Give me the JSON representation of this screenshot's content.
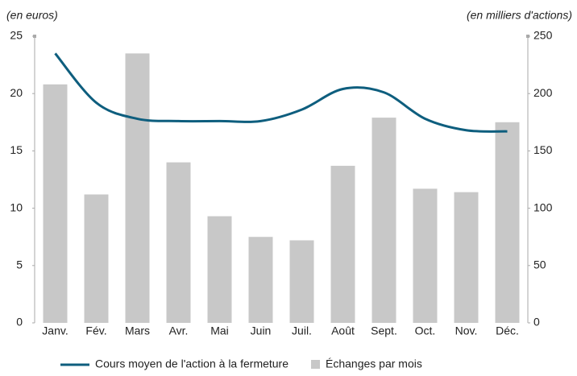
{
  "chart_data": {
    "type": "combo",
    "y_label": "(en euros)",
    "y2_label": "(en milliers d'actions)",
    "categories": [
      "Janv.",
      "Fév.",
      "Mars",
      "Avr.",
      "Mai",
      "Juin",
      "Juil.",
      "Août",
      "Sept.",
      "Oct.",
      "Nov.",
      "Déc."
    ],
    "series": [
      {
        "name": "Cours moyen de l'action à la fermeture",
        "type": "line",
        "color": "#0e5e7e",
        "values": [
          23.5,
          19.2,
          17.8,
          17.6,
          17.6,
          17.6,
          18.6,
          20.4,
          20.1,
          17.8,
          16.8,
          16.7
        ]
      },
      {
        "name": "Échanges par mois",
        "type": "bar",
        "axis": "y2",
        "color": "#c8c8c8",
        "values": [
          208,
          112,
          235,
          140,
          93,
          75,
          72,
          137,
          179,
          117,
          114,
          175
        ]
      }
    ],
    "ylim": [
      0,
      25
    ],
    "yticks": [
      0,
      5,
      10,
      15,
      20,
      25
    ],
    "y2lim": [
      0,
      250
    ],
    "y2ticks": [
      0,
      50,
      100,
      150,
      200,
      250
    ]
  }
}
